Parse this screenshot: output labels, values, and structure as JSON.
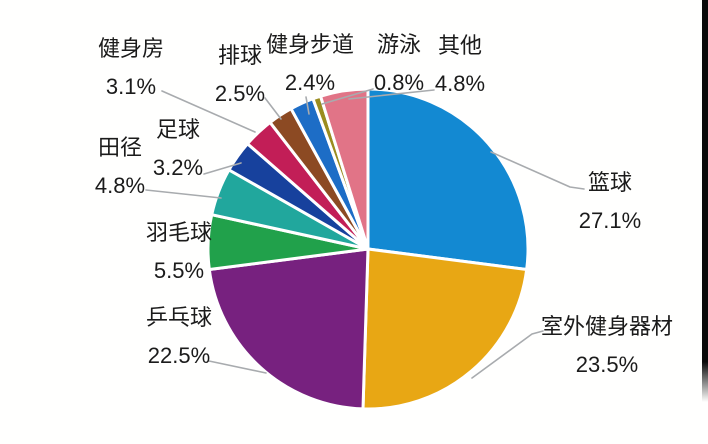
{
  "chart_data": {
    "type": "pie",
    "title": "",
    "legend": "none",
    "direction": "clockwise",
    "start_angle_deg": 0,
    "background": "#ffffff",
    "label_text_color": "#1b1b1b",
    "leader_line_color": "#a8abae",
    "slice_gap_color": "#ffffff",
    "series": [
      {
        "key": "basketball",
        "label": "篮球",
        "value": 27.1,
        "display": "27.1%",
        "color": "#1389d2"
      },
      {
        "key": "outdoor-fitness-equipment",
        "label": "室外健身器材",
        "value": 23.5,
        "display": "23.5%",
        "color": "#e8a714"
      },
      {
        "key": "table-tennis",
        "label": "乒乓球",
        "value": 22.5,
        "display": "22.5%",
        "color": "#77217f"
      },
      {
        "key": "badminton",
        "label": "羽毛球",
        "value": 5.5,
        "display": "5.5%",
        "color": "#21a14b"
      },
      {
        "key": "track-and-field",
        "label": "田径",
        "value": 4.8,
        "display": "4.8%",
        "color": "#21a79d"
      },
      {
        "key": "football",
        "label": "足球",
        "value": 3.2,
        "display": "3.2%",
        "color": "#17419d"
      },
      {
        "key": "gym",
        "label": "健身房",
        "value": 3.1,
        "display": "3.1%",
        "color": "#c21e57"
      },
      {
        "key": "volleyball",
        "label": "排球",
        "value": 2.5,
        "display": "2.5%",
        "color": "#8c4a23"
      },
      {
        "key": "fitness-trail",
        "label": "健身步道",
        "value": 2.4,
        "display": "2.4%",
        "color": "#1d6dc6"
      },
      {
        "key": "swimming",
        "label": "游泳",
        "value": 0.8,
        "display": "0.8%",
        "color": "#9a8c1f"
      },
      {
        "key": "other",
        "label": "其他",
        "value": 4.8,
        "display": "4.8%",
        "color": "#e17487"
      }
    ]
  }
}
